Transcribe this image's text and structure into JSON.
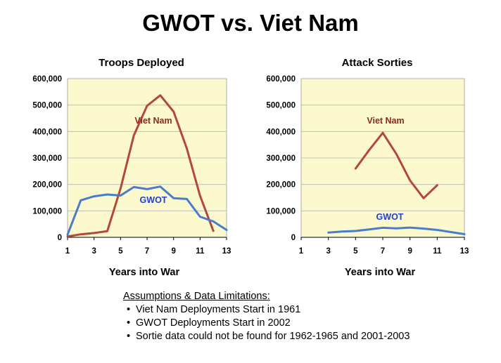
{
  "title": "GWOT vs. Viet Nam",
  "chart_data": [
    {
      "type": "line",
      "title": "Troops Deployed",
      "xlabel": "Years into War",
      "ylabel": "",
      "xlim": [
        1,
        13
      ],
      "ylim": [
        0,
        600000
      ],
      "xticks": [
        1,
        3,
        5,
        7,
        9,
        11,
        13
      ],
      "yticks": [
        0,
        100000,
        200000,
        300000,
        400000,
        500000,
        600000
      ],
      "yticklabels": [
        "0",
        "100,000",
        "200,000",
        "300,000",
        "400,000",
        "500,000",
        "600,000"
      ],
      "series": [
        {
          "name": "Viet Nam",
          "color": "#b5473a",
          "x": [
            1,
            2,
            3,
            4,
            5,
            6,
            7,
            8,
            9,
            10,
            11,
            12
          ],
          "values": [
            3200,
            11300,
            16300,
            23300,
            184300,
            385300,
            497300,
            537000,
            475200,
            335800,
            156800,
            24200
          ]
        },
        {
          "name": "GWOT",
          "color": "#4a7ccc",
          "x": [
            1,
            2,
            3,
            4,
            5,
            6,
            7,
            8,
            9,
            10,
            11,
            12,
            13
          ],
          "values": [
            10000,
            140000,
            155000,
            162000,
            158000,
            190000,
            182000,
            192000,
            148000,
            145000,
            78000,
            60000,
            28000
          ]
        }
      ]
    },
    {
      "type": "line",
      "title": "Attack Sorties",
      "xlabel": "Years into War",
      "ylabel": "",
      "xlim": [
        1,
        13
      ],
      "ylim": [
        0,
        600000
      ],
      "xticks": [
        1,
        3,
        5,
        7,
        9,
        11,
        13
      ],
      "yticks": [
        0,
        100000,
        200000,
        300000,
        400000,
        500000,
        600000
      ],
      "yticklabels": [
        "0",
        "100,000",
        "200,000",
        "300,000",
        "400,000",
        "500,000",
        "600,000"
      ],
      "series": [
        {
          "name": "Viet Nam",
          "color": "#b5473a",
          "x": [
            5,
            6,
            7,
            8,
            9,
            10,
            11
          ],
          "values": [
            260000,
            330000,
            395000,
            315000,
            215000,
            148000,
            197000
          ]
        },
        {
          "name": "GWOT",
          "color": "#4a7ccc",
          "x": [
            3,
            4,
            5,
            6,
            7,
            8,
            9,
            10,
            11,
            12,
            13
          ],
          "values": [
            18000,
            22000,
            24000,
            30000,
            36000,
            34000,
            37000,
            33000,
            28000,
            20000,
            12000
          ]
        }
      ]
    }
  ],
  "notes": {
    "heading": "Assumptions & Data Limitations:",
    "items": [
      "Viet Nam Deployments Start in 1961",
      "GWOT Deployments Start in 2002",
      "Sortie data could not be found for 1962-1965 and 2001-2003"
    ]
  }
}
